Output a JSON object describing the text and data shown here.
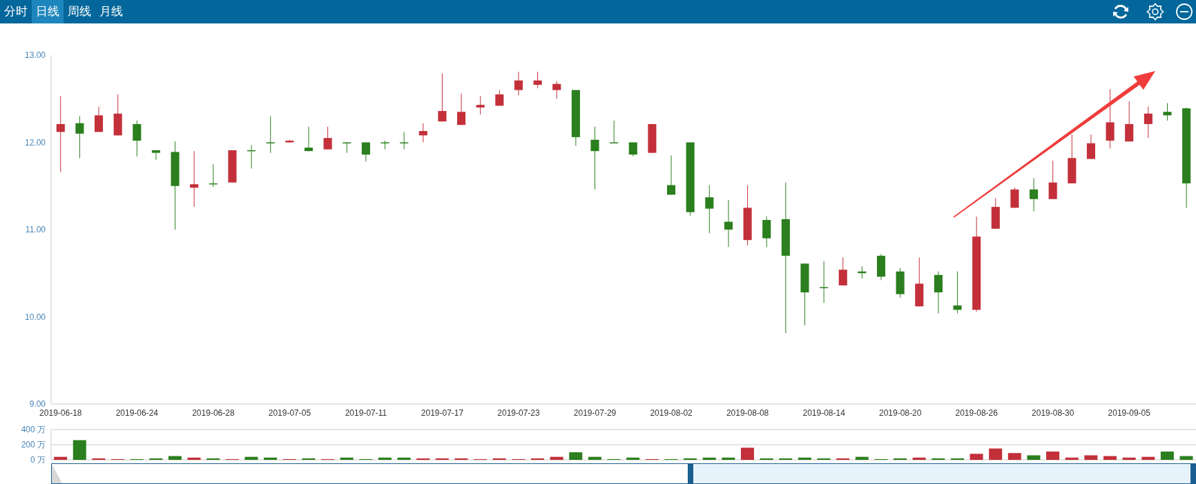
{
  "chart_data": [
    {
      "type": "candlestick",
      "annotations": [
        "分时",
        "日线",
        "周线",
        "月线"
      ],
      "categories": [
        "2019-06-18",
        null,
        null,
        null,
        "2019-06-24",
        null,
        null,
        null,
        "2019-06-28",
        null,
        null,
        null,
        "2019-07-05",
        null,
        null,
        null,
        "2019-07-11",
        null,
        null,
        null,
        "2019-07-17",
        null,
        null,
        null,
        "2019-07-23",
        null,
        null,
        null,
        "2019-07-29",
        null,
        null,
        null,
        "2019-08-02",
        null,
        null,
        null,
        "2019-08-08",
        null,
        null,
        null,
        "2019-08-14",
        null,
        null,
        null,
        "2019-08-20",
        null,
        null,
        null,
        "2019-08-26",
        null,
        null,
        null,
        "2019-08-30",
        null,
        null,
        null,
        "2019-09-05",
        null,
        null,
        null
      ],
      "ohlc": [
        [
          12.12,
          12.53,
          11.66,
          12.21
        ],
        [
          12.22,
          12.3,
          11.82,
          12.1
        ],
        [
          12.12,
          12.41,
          12.12,
          12.31
        ],
        [
          12.08,
          12.55,
          12.08,
          12.33
        ],
        [
          12.21,
          12.25,
          11.84,
          12.02
        ],
        [
          11.91,
          11.91,
          11.8,
          11.88
        ],
        [
          11.89,
          12.01,
          11.0,
          11.5
        ],
        [
          11.48,
          11.9,
          11.26,
          11.52
        ],
        [
          11.53,
          11.75,
          11.49,
          11.52
        ],
        [
          11.54,
          11.91,
          11.54,
          11.91
        ],
        [
          11.91,
          11.97,
          11.7,
          11.91
        ],
        [
          12.0,
          12.3,
          11.88,
          12.0
        ],
        [
          12.0,
          12.03,
          12.0,
          12.02
        ],
        [
          11.94,
          12.18,
          11.9,
          11.9
        ],
        [
          11.92,
          12.18,
          11.92,
          12.05
        ],
        [
          12.0,
          12.0,
          11.88,
          12.0
        ],
        [
          12.0,
          12.0,
          11.78,
          11.86
        ],
        [
          12.0,
          12.02,
          11.92,
          12.0
        ],
        [
          12.0,
          12.12,
          11.92,
          12.0
        ],
        [
          12.08,
          12.22,
          12.0,
          12.13
        ],
        [
          12.24,
          12.79,
          12.24,
          12.36
        ],
        [
          12.2,
          12.56,
          12.2,
          12.35
        ],
        [
          12.4,
          12.53,
          12.32,
          12.43
        ],
        [
          12.42,
          12.6,
          12.42,
          12.55
        ],
        [
          12.6,
          12.81,
          12.54,
          12.71
        ],
        [
          12.66,
          12.81,
          12.62,
          12.71
        ],
        [
          12.6,
          12.7,
          12.5,
          12.67
        ],
        [
          12.6,
          12.6,
          11.96,
          12.06
        ],
        [
          12.03,
          12.18,
          11.46,
          11.9
        ],
        [
          12.0,
          12.25,
          12.0,
          12.0
        ],
        [
          12.0,
          12.0,
          11.84,
          11.86
        ],
        [
          11.88,
          12.21,
          11.88,
          12.21
        ],
        [
          11.51,
          11.85,
          11.4,
          11.4
        ],
        [
          12.0,
          12.0,
          11.16,
          11.2
        ],
        [
          11.37,
          11.51,
          10.96,
          11.24
        ],
        [
          11.09,
          11.34,
          10.8,
          11.0
        ],
        [
          10.88,
          11.51,
          10.82,
          11.25
        ],
        [
          11.11,
          11.15,
          10.8,
          10.9
        ],
        [
          11.12,
          11.54,
          9.81,
          10.7
        ],
        [
          10.61,
          10.61,
          9.9,
          10.28
        ],
        [
          10.34,
          10.64,
          10.16,
          10.34
        ],
        [
          10.36,
          10.68,
          10.36,
          10.54
        ],
        [
          10.52,
          10.58,
          10.44,
          10.5
        ],
        [
          10.7,
          10.72,
          10.42,
          10.46
        ],
        [
          10.52,
          10.56,
          10.22,
          10.26
        ],
        [
          10.12,
          10.68,
          10.12,
          10.38
        ],
        [
          10.48,
          10.52,
          10.04,
          10.28
        ],
        [
          10.13,
          10.52,
          10.04,
          10.08
        ],
        [
          10.08,
          11.15,
          10.06,
          10.92
        ],
        [
          11.01,
          11.36,
          11.01,
          11.26
        ],
        [
          11.25,
          11.48,
          11.25,
          11.46
        ],
        [
          11.46,
          11.59,
          11.21,
          11.35
        ],
        [
          11.35,
          11.79,
          11.35,
          11.54
        ],
        [
          11.53,
          12.09,
          11.53,
          11.82
        ],
        [
          11.81,
          12.09,
          11.81,
          11.99
        ],
        [
          12.02,
          12.61,
          11.93,
          12.23
        ],
        [
          12.01,
          12.47,
          12.01,
          12.21
        ],
        [
          12.21,
          12.41,
          12.05,
          12.33
        ],
        [
          12.35,
          12.45,
          12.25,
          12.31
        ],
        [
          12.39,
          12.4,
          11.25,
          11.53
        ]
      ],
      "colors": [
        "#c3303a",
        "#2b7f1e",
        "#c3303a",
        "#c3303a",
        "#2b7f1e",
        "#2b7f1e",
        "#2b7f1e",
        "#c3303a",
        "#2b7f1e",
        "#c3303a",
        "#2b7f1e",
        "#2b7f1e",
        "#c3303a",
        "#2b7f1e",
        "#c3303a",
        "#2b7f1e",
        "#2b7f1e",
        "#2b7f1e",
        "#2b7f1e",
        "#c3303a",
        "#c3303a",
        "#c3303a",
        "#c3303a",
        "#c3303a",
        "#c3303a",
        "#c3303a",
        "#c3303a",
        "#2b7f1e",
        "#2b7f1e",
        "#2b7f1e",
        "#2b7f1e",
        "#c3303a",
        "#2b7f1e",
        "#2b7f1e",
        "#2b7f1e",
        "#2b7f1e",
        "#c3303a",
        "#2b7f1e",
        "#2b7f1e",
        "#2b7f1e",
        "#2b7f1e",
        "#c3303a",
        "#2b7f1e",
        "#2b7f1e",
        "#2b7f1e",
        "#c3303a",
        "#2b7f1e",
        "#2b7f1e",
        "#c3303a",
        "#c3303a",
        "#c3303a",
        "#2b7f1e",
        "#c3303a",
        "#c3303a",
        "#c3303a",
        "#c3303a",
        "#c3303a",
        "#c3303a",
        "#2b7f1e",
        "#2b7f1e"
      ],
      "ylim": [
        9,
        13
      ],
      "yticks": [
        {
          "value": 9,
          "label": "9.00"
        },
        {
          "value": 10,
          "label": "10.00"
        },
        {
          "value": 11,
          "label": "11.00"
        },
        {
          "value": 12,
          "label": "12.00"
        },
        {
          "value": 13,
          "label": "13.00"
        }
      ]
    },
    {
      "type": "bar",
      "categories": [
        null,
        null,
        null,
        null,
        null,
        null,
        null,
        null,
        null,
        null,
        null,
        null,
        null,
        null,
        null,
        null,
        null,
        null,
        null,
        null,
        null,
        null,
        null,
        null,
        null,
        null,
        null,
        null,
        null,
        null,
        null,
        null,
        null,
        null,
        null,
        null,
        null,
        null,
        null,
        null,
        null,
        null,
        null,
        null,
        null,
        null,
        null,
        null,
        null,
        null,
        null,
        null,
        null,
        null,
        null,
        null,
        null,
        null,
        null,
        null
      ],
      "values": [
        40,
        260,
        20,
        10,
        10,
        20,
        50,
        30,
        20,
        10,
        40,
        30,
        10,
        20,
        10,
        30,
        10,
        30,
        30,
        20,
        20,
        20,
        10,
        20,
        10,
        20,
        40,
        100,
        40,
        10,
        30,
        10,
        10,
        20,
        30,
        30,
        160,
        20,
        20,
        30,
        20,
        20,
        40,
        10,
        20,
        30,
        20,
        20,
        80,
        150,
        90,
        60,
        110,
        30,
        60,
        50,
        30,
        40,
        110,
        50
      ],
      "colors": [
        "#c3303a",
        "#2b7f1e",
        "#c3303a",
        "#c3303a",
        "#2b7f1e",
        "#2b7f1e",
        "#2b7f1e",
        "#c3303a",
        "#2b7f1e",
        "#c3303a",
        "#2b7f1e",
        "#2b7f1e",
        "#c3303a",
        "#2b7f1e",
        "#c3303a",
        "#2b7f1e",
        "#2b7f1e",
        "#2b7f1e",
        "#2b7f1e",
        "#c3303a",
        "#c3303a",
        "#c3303a",
        "#c3303a",
        "#c3303a",
        "#c3303a",
        "#c3303a",
        "#c3303a",
        "#2b7f1e",
        "#2b7f1e",
        "#2b7f1e",
        "#2b7f1e",
        "#c3303a",
        "#2b7f1e",
        "#2b7f1e",
        "#2b7f1e",
        "#2b7f1e",
        "#c3303a",
        "#2b7f1e",
        "#2b7f1e",
        "#2b7f1e",
        "#2b7f1e",
        "#c3303a",
        "#2b7f1e",
        "#2b7f1e",
        "#2b7f1e",
        "#c3303a",
        "#2b7f1e",
        "#2b7f1e",
        "#c3303a",
        "#c3303a",
        "#c3303a",
        "#2b7f1e",
        "#c3303a",
        "#c3303a",
        "#c3303a",
        "#c3303a",
        "#c3303a",
        "#c3303a",
        "#2b7f1e",
        "#2b7f1e"
      ],
      "ylim": [
        0,
        400
      ],
      "yticks": [
        {
          "value": 0,
          "label": "0 万"
        },
        {
          "value": 200,
          "label": "200 万"
        },
        {
          "value": 400,
          "label": "400 万"
        }
      ],
      "grid": "y",
      "tick_labels": "y"
    }
  ]
}
